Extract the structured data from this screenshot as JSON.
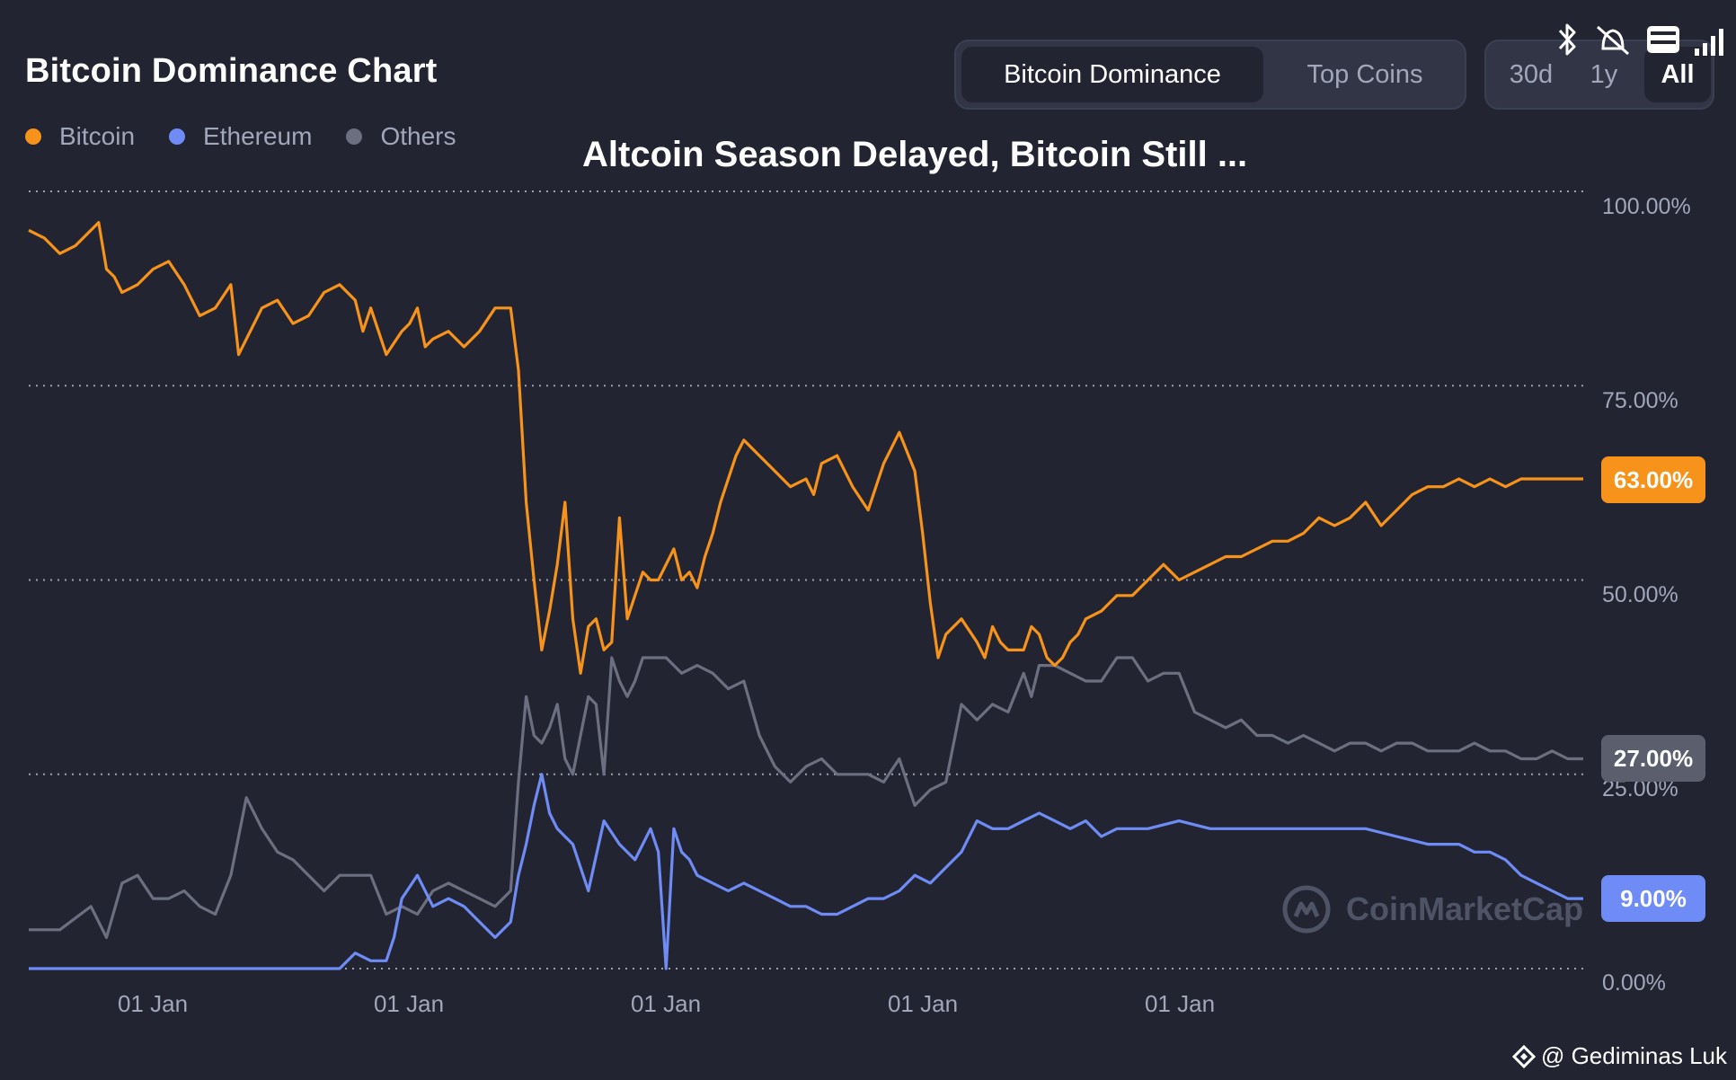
{
  "header": {
    "title": "Bitcoin Dominance Chart",
    "headline": "Altcoin Season Delayed, Bitcoin Still ..."
  },
  "view_toggle": {
    "options": [
      "Bitcoin Dominance",
      "Top Coins"
    ],
    "selected": "Bitcoin Dominance"
  },
  "range_toggle": {
    "options": [
      "30d",
      "1y",
      "All"
    ],
    "selected": "All"
  },
  "legend": [
    {
      "label": "Bitcoin",
      "color": "#f7931a"
    },
    {
      "label": "Ethereum",
      "color": "#6f8bf5"
    },
    {
      "label": "Others",
      "color": "#6b6f80"
    }
  ],
  "badges": {
    "bitcoin": "63.00%",
    "others": "27.00%",
    "ethereum": "9.00%"
  },
  "watermark": "CoinMarketCap",
  "credit": "@ Gediminas Luk",
  "status_icons": [
    "bluetooth-icon",
    "bell-muted-icon",
    "volte-icon",
    "signal-icon"
  ],
  "chart_data": {
    "type": "line",
    "title": "Bitcoin Dominance Chart",
    "xlabel": "",
    "ylabel": "",
    "ylim": [
      0,
      100
    ],
    "grid": true,
    "legend_position": "top-left",
    "y_ticks": [
      "100.00%",
      "75.00%",
      "50.00%",
      "25.00%",
      "0.00%"
    ],
    "x_ticks": [
      "01 Jan",
      "01 Jan",
      "01 Jan",
      "01 Jan",
      "01 Jan"
    ],
    "x_tick_positions": [
      0.079,
      0.244,
      0.409,
      0.574,
      0.739
    ],
    "series": [
      {
        "name": "Bitcoin",
        "color": "#f7931a",
        "x": [
          0.0,
          0.01,
          0.02,
          0.03,
          0.045,
          0.05,
          0.055,
          0.06,
          0.07,
          0.08,
          0.09,
          0.1,
          0.11,
          0.12,
          0.13,
          0.135,
          0.14,
          0.15,
          0.16,
          0.17,
          0.18,
          0.19,
          0.2,
          0.21,
          0.215,
          0.22,
          0.23,
          0.24,
          0.245,
          0.25,
          0.255,
          0.26,
          0.27,
          0.28,
          0.29,
          0.3,
          0.31,
          0.315,
          0.32,
          0.325,
          0.33,
          0.335,
          0.34,
          0.345,
          0.35,
          0.355,
          0.36,
          0.365,
          0.37,
          0.375,
          0.38,
          0.385,
          0.39,
          0.395,
          0.4,
          0.405,
          0.41,
          0.415,
          0.42,
          0.425,
          0.43,
          0.435,
          0.44,
          0.445,
          0.45,
          0.455,
          0.46,
          0.47,
          0.48,
          0.49,
          0.5,
          0.505,
          0.51,
          0.52,
          0.53,
          0.54,
          0.55,
          0.56,
          0.57,
          0.575,
          0.58,
          0.585,
          0.59,
          0.6,
          0.61,
          0.615,
          0.62,
          0.625,
          0.63,
          0.64,
          0.645,
          0.65,
          0.655,
          0.66,
          0.665,
          0.67,
          0.675,
          0.68,
          0.69,
          0.7,
          0.71,
          0.72,
          0.73,
          0.74,
          0.75,
          0.76,
          0.77,
          0.78,
          0.79,
          0.8,
          0.81,
          0.82,
          0.83,
          0.84,
          0.85,
          0.86,
          0.87,
          0.88,
          0.89,
          0.9,
          0.91,
          0.92,
          0.93,
          0.94,
          0.95,
          0.96,
          0.97,
          0.98,
          0.99,
          1.0
        ],
        "values": [
          95,
          94,
          92,
          93,
          96,
          90,
          89,
          87,
          88,
          90,
          91,
          88,
          84,
          85,
          88,
          79,
          81,
          85,
          86,
          83,
          84,
          87,
          88,
          86,
          82,
          85,
          79,
          82,
          83,
          85,
          80,
          81,
          82,
          80,
          82,
          85,
          85,
          77,
          60,
          50,
          41,
          46,
          52,
          60,
          45,
          38,
          44,
          45,
          41,
          42,
          58,
          45,
          48,
          51,
          50,
          50,
          52,
          54,
          50,
          51,
          49,
          53,
          56,
          60,
          63,
          66,
          68,
          66,
          64,
          62,
          63,
          61,
          65,
          66,
          62,
          59,
          65,
          69,
          64,
          56,
          47,
          40,
          43,
          45,
          42,
          40,
          44,
          42,
          41,
          41,
          44,
          43,
          40,
          39,
          40,
          42,
          43,
          45,
          46,
          48,
          48,
          50,
          52,
          50,
          51,
          52,
          53,
          53,
          54,
          55,
          55,
          56,
          58,
          57,
          58,
          60,
          57,
          59,
          61,
          62,
          62,
          63,
          62,
          63,
          62,
          63,
          63,
          63,
          63,
          63
        ]
      },
      {
        "name": "Ethereum",
        "color": "#6f8bf5",
        "x": [
          0.0,
          0.05,
          0.1,
          0.15,
          0.19,
          0.2,
          0.21,
          0.22,
          0.23,
          0.235,
          0.24,
          0.25,
          0.26,
          0.27,
          0.28,
          0.29,
          0.3,
          0.31,
          0.315,
          0.32,
          0.325,
          0.33,
          0.335,
          0.34,
          0.345,
          0.35,
          0.355,
          0.36,
          0.37,
          0.38,
          0.39,
          0.4,
          0.405,
          0.41,
          0.415,
          0.42,
          0.425,
          0.43,
          0.44,
          0.45,
          0.46,
          0.47,
          0.48,
          0.49,
          0.5,
          0.51,
          0.52,
          0.53,
          0.54,
          0.55,
          0.56,
          0.57,
          0.58,
          0.59,
          0.6,
          0.61,
          0.62,
          0.63,
          0.64,
          0.65,
          0.66,
          0.67,
          0.68,
          0.69,
          0.7,
          0.72,
          0.74,
          0.76,
          0.78,
          0.8,
          0.82,
          0.84,
          0.86,
          0.88,
          0.9,
          0.91,
          0.92,
          0.93,
          0.94,
          0.95,
          0.96,
          0.97,
          0.98,
          0.99,
          1.0
        ],
        "values": [
          0,
          0,
          0,
          0,
          0,
          0,
          2,
          1,
          1,
          4,
          9,
          12,
          8,
          9,
          8,
          6,
          4,
          6,
          12,
          16,
          21,
          25,
          20,
          18,
          17,
          16,
          13,
          10,
          19,
          16,
          14,
          18,
          15,
          0,
          18,
          15,
          14,
          12,
          11,
          10,
          11,
          10,
          9,
          8,
          8,
          7,
          7,
          8,
          9,
          9,
          10,
          12,
          11,
          13,
          15,
          19,
          18,
          18,
          19,
          20,
          19,
          18,
          19,
          17,
          18,
          18,
          19,
          18,
          18,
          18,
          18,
          18,
          18,
          17,
          16,
          16,
          16,
          15,
          15,
          14,
          12,
          11,
          10,
          9,
          9
        ]
      },
      {
        "name": "Others",
        "color": "#6b6f80",
        "x": [
          0.0,
          0.02,
          0.04,
          0.05,
          0.06,
          0.07,
          0.08,
          0.09,
          0.1,
          0.11,
          0.12,
          0.13,
          0.14,
          0.15,
          0.16,
          0.17,
          0.18,
          0.19,
          0.2,
          0.21,
          0.22,
          0.23,
          0.24,
          0.25,
          0.26,
          0.27,
          0.28,
          0.29,
          0.3,
          0.31,
          0.315,
          0.32,
          0.325,
          0.33,
          0.335,
          0.34,
          0.345,
          0.35,
          0.355,
          0.36,
          0.365,
          0.37,
          0.375,
          0.38,
          0.385,
          0.39,
          0.395,
          0.4,
          0.41,
          0.42,
          0.43,
          0.44,
          0.45,
          0.46,
          0.47,
          0.48,
          0.49,
          0.5,
          0.51,
          0.52,
          0.53,
          0.54,
          0.55,
          0.56,
          0.57,
          0.58,
          0.59,
          0.6,
          0.61,
          0.62,
          0.63,
          0.64,
          0.645,
          0.65,
          0.66,
          0.67,
          0.68,
          0.69,
          0.7,
          0.71,
          0.72,
          0.73,
          0.74,
          0.75,
          0.76,
          0.77,
          0.78,
          0.79,
          0.8,
          0.81,
          0.82,
          0.83,
          0.84,
          0.85,
          0.86,
          0.87,
          0.88,
          0.89,
          0.9,
          0.91,
          0.92,
          0.93,
          0.94,
          0.95,
          0.96,
          0.97,
          0.98,
          0.99,
          1.0
        ],
        "values": [
          5,
          5,
          8,
          4,
          11,
          12,
          9,
          9,
          10,
          8,
          7,
          12,
          22,
          18,
          15,
          14,
          12,
          10,
          12,
          12,
          12,
          7,
          8,
          7,
          10,
          11,
          10,
          9,
          8,
          10,
          24,
          35,
          30,
          29,
          31,
          34,
          27,
          25,
          30,
          35,
          34,
          25,
          40,
          37,
          35,
          37,
          40,
          40,
          40,
          38,
          39,
          38,
          36,
          37,
          30,
          26,
          24,
          26,
          27,
          25,
          25,
          25,
          24,
          27,
          21,
          23,
          24,
          34,
          32,
          34,
          33,
          38,
          35,
          39,
          39,
          38,
          37,
          37,
          40,
          40,
          37,
          38,
          38,
          33,
          32,
          31,
          32,
          30,
          30,
          29,
          30,
          29,
          28,
          29,
          29,
          28,
          29,
          29,
          28,
          28,
          28,
          29,
          28,
          28,
          27,
          27,
          28,
          27,
          27
        ]
      }
    ]
  }
}
